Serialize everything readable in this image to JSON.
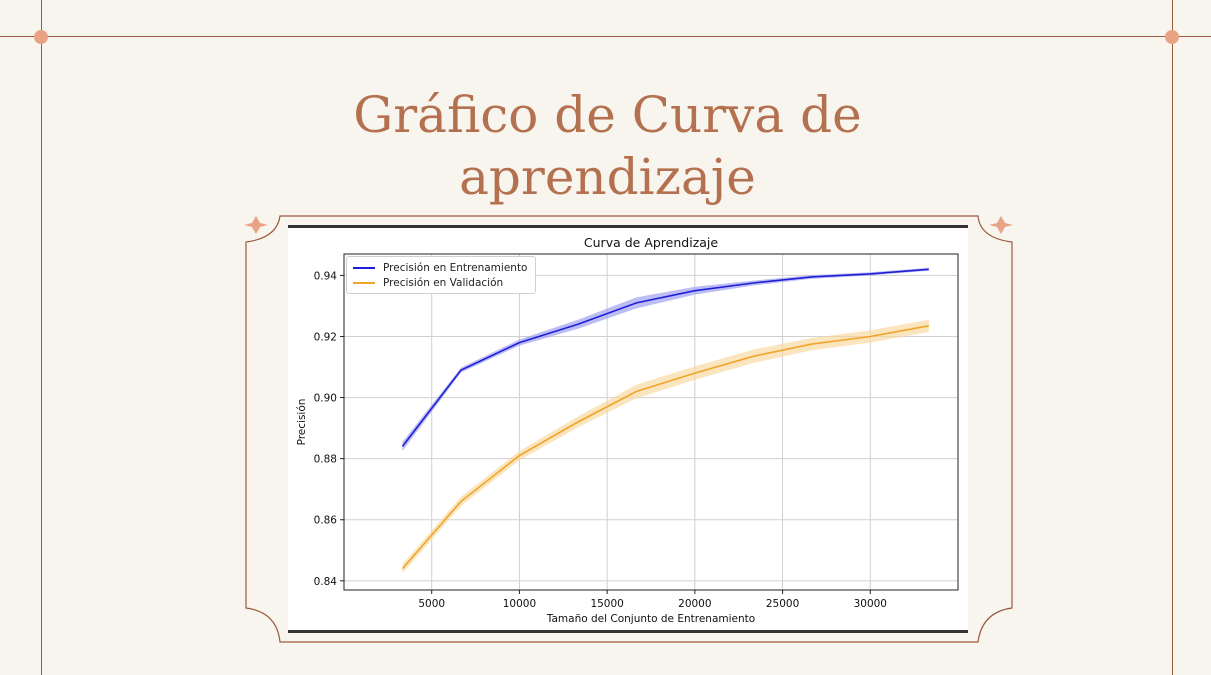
{
  "slide": {
    "title": "Gráfico de Curva de aprendizaje",
    "colors": {
      "background": "#f8f4ee",
      "accent": "#b4714f",
      "frame": "#9a5a3e",
      "ornament": "#e8a385"
    }
  },
  "chart_data": {
    "type": "line",
    "title": "Curva de Aprendizaje",
    "xlabel": "Tamaño del Conjunto de Entrenamiento",
    "ylabel": "Precisión",
    "xlim": [
      0,
      35000
    ],
    "ylim": [
      0.837,
      0.947
    ],
    "xticks": [
      5000,
      10000,
      15000,
      20000,
      25000,
      30000
    ],
    "xtick_labels": [
      "5000",
      "10000",
      "15000",
      "20000",
      "25000",
      "30000"
    ],
    "yticks": [
      0.84,
      0.86,
      0.88,
      0.9,
      0.92,
      0.94
    ],
    "ytick_labels": [
      "0.84",
      "0.86",
      "0.88",
      "0.90",
      "0.92",
      "0.94"
    ],
    "grid": true,
    "legend_position": "top-left",
    "x": [
      3333,
      6667,
      10000,
      13333,
      16667,
      20000,
      23333,
      26667,
      30000,
      33333
    ],
    "series": [
      {
        "name": "Precisión en Entrenamiento",
        "color": "#1f1fd8",
        "band_color": "#9a9af0",
        "values": [
          0.884,
          0.909,
          0.918,
          0.924,
          0.931,
          0.935,
          0.9375,
          0.9395,
          0.9405,
          0.942
        ],
        "band": [
          0.0015,
          0.0008,
          0.001,
          0.0015,
          0.0018,
          0.0013,
          0.0008,
          0.0006,
          0.0005,
          0.0005
        ]
      },
      {
        "name": "Precisión en Validación",
        "color": "#f0a52a",
        "band_color": "#f7d79d",
        "values": [
          0.844,
          0.866,
          0.881,
          0.892,
          0.902,
          0.908,
          0.9135,
          0.9175,
          0.92,
          0.9235
        ],
        "band": [
          0.0015,
          0.0015,
          0.0015,
          0.0018,
          0.0022,
          0.0022,
          0.0022,
          0.002,
          0.002,
          0.002
        ]
      }
    ]
  }
}
